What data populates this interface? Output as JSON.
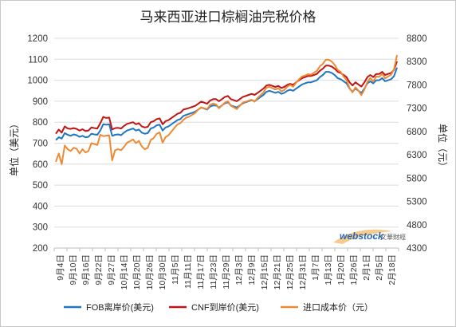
{
  "chart_data": {
    "type": "line",
    "title": "马来西亚进口棕榈油完税价格",
    "ylabel_left": "单位（美元）",
    "ylabel_right": "单位（元）",
    "ylim_left": [
      200,
      1200
    ],
    "ylim_right": [
      4300,
      8800
    ],
    "yticks_left": [
      200,
      300,
      400,
      500,
      600,
      700,
      800,
      900,
      1000,
      1100,
      1200
    ],
    "yticks_right": [
      4300,
      4800,
      5300,
      5800,
      6300,
      6800,
      7300,
      7800,
      8300,
      8800
    ],
    "x_labels": [
      "9月4日",
      "9月10日",
      "9月16日",
      "9月22日",
      "9月27日",
      "10月14日",
      "10月20日",
      "10月26日",
      "10月30日",
      "11月5日",
      "11月11日",
      "11月17日",
      "11月23日",
      "11月29日",
      "12月3日",
      "12月9日",
      "12月15日",
      "12月21日",
      "12月25日",
      "12月31日",
      "1月7日",
      "1月13日",
      "1月20日",
      "1月26日",
      "2月1日",
      "2月5日",
      "2月18日"
    ],
    "grid": true,
    "legend_position": "bottom",
    "watermark": "webstock 文華財經",
    "series": [
      {
        "name": "FOB离岸价(美元)",
        "axis": "left",
        "color": "#1f77c4",
        "values": [
          715,
          728,
          722,
          748,
          740,
          735,
          742,
          738,
          730,
          735,
          728,
          730,
          745,
          742,
          740,
          760,
          790,
          788,
          790,
          735,
          740,
          742,
          738,
          750,
          760,
          765,
          770,
          760,
          765,
          750,
          745,
          748,
          770,
          775,
          785,
          788,
          760,
          775,
          780,
          790,
          800,
          810,
          815,
          830,
          835,
          840,
          845,
          850,
          860,
          870,
          865,
          860,
          875,
          880,
          880,
          870,
          880,
          890,
          895,
          880,
          875,
          870,
          880,
          890,
          895,
          900,
          905,
          900,
          910,
          920,
          930,
          945,
          950,
          945,
          940,
          945,
          935,
          940,
          950,
          955,
          950,
          960,
          970,
          980,
          985,
          990,
          990,
          995,
          1000,
          1015,
          1025,
          1040,
          1040,
          1035,
          1025,
          1010,
          1005,
          995,
          985,
          960,
          945,
          960,
          950,
          940,
          960,
          985,
          995,
          985,
          1000,
          1000,
          1010,
          995,
          1000,
          1005,
          1020,
          1060
        ]
      },
      {
        "name": "CNF到岸价(美元)",
        "axis": "left",
        "color": "#c01515",
        "values": [
          745,
          765,
          750,
          780,
          770,
          768,
          772,
          768,
          760,
          766,
          758,
          760,
          775,
          772,
          770,
          795,
          825,
          820,
          822,
          765,
          772,
          773,
          770,
          782,
          792,
          796,
          800,
          790,
          795,
          780,
          775,
          778,
          800,
          805,
          815,
          818,
          790,
          805,
          810,
          820,
          830,
          840,
          845,
          860,
          864,
          868,
          873,
          878,
          888,
          898,
          893,
          888,
          903,
          910,
          910,
          900,
          910,
          920,
          925,
          910,
          905,
          900,
          910,
          920,
          925,
          930,
          935,
          930,
          940,
          950,
          960,
          975,
          978,
          973,
          968,
          973,
          963,
          968,
          978,
          983,
          978,
          990,
          1000,
          1010,
          1015,
          1020,
          1020,
          1025,
          1030,
          1045,
          1055,
          1070,
          1070,
          1065,
          1055,
          1040,
          1035,
          1025,
          1015,
          990,
          975,
          990,
          980,
          970,
          990,
          1015,
          1025,
          1015,
          1030,
          1030,
          1040,
          1025,
          1030,
          1035,
          1050,
          1090
        ]
      },
      {
        "name": "进口成本价（元）",
        "axis": "right",
        "color": "#ee8a33",
        "values": [
          6150,
          6330,
          6100,
          6500,
          6420,
          6380,
          6450,
          6430,
          6330,
          6420,
          6350,
          6380,
          6550,
          6530,
          6510,
          6730,
          6700,
          6710,
          6720,
          6180,
          6400,
          6420,
          6400,
          6470,
          6560,
          6590,
          6630,
          6550,
          6600,
          6480,
          6420,
          6450,
          6620,
          6660,
          6750,
          6780,
          6560,
          6680,
          6720,
          6800,
          6880,
          6950,
          6980,
          7050,
          7100,
          7120,
          7160,
          7200,
          7270,
          7320,
          7300,
          7280,
          7370,
          7400,
          7380,
          7300,
          7360,
          7420,
          7450,
          7350,
          7320,
          7280,
          7350,
          7420,
          7440,
          7460,
          7480,
          7440,
          7520,
          7580,
          7640,
          7740,
          7760,
          7730,
          7700,
          7730,
          7660,
          7690,
          7760,
          7800,
          7760,
          7850,
          7920,
          7980,
          8000,
          8030,
          8020,
          8060,
          8100,
          8200,
          8250,
          8340,
          8340,
          8300,
          8230,
          8120,
          8080,
          7980,
          7900,
          7730,
          7640,
          7750,
          7680,
          7580,
          7700,
          7860,
          7950,
          7870,
          7980,
          7970,
          8040,
          7940,
          7980,
          8020,
          8140,
          8440
        ]
      }
    ]
  }
}
